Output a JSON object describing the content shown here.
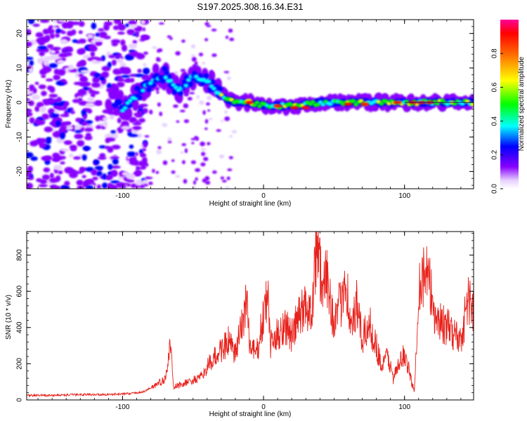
{
  "title": "S197.2025.308.16.34.E31",
  "chart_data": [
    {
      "type": "heatmap",
      "xlabel": "Height of straight line (km)",
      "ylabel": "Frequency (Hz)",
      "xlim": [
        -168,
        149
      ],
      "ylim": [
        -25,
        24
      ],
      "xticks": [
        -100,
        0,
        100
      ],
      "yticks": [
        -20,
        -10,
        0,
        10,
        20
      ],
      "colorbar": {
        "label": "Normalized spectral amplitude",
        "ticks": [
          0.0,
          0.2,
          0.4,
          0.6,
          0.8
        ],
        "range": [
          0,
          1
        ]
      },
      "ridge": {
        "description": "main frequency ridge",
        "points": [
          {
            "x": -100,
            "y": -2
          },
          {
            "x": -90,
            "y": 2
          },
          {
            "x": -80,
            "y": 6
          },
          {
            "x": -70,
            "y": 8
          },
          {
            "x": -60,
            "y": 3
          },
          {
            "x": -50,
            "y": 8
          },
          {
            "x": -40,
            "y": 6
          },
          {
            "x": -30,
            "y": 2
          },
          {
            "x": -20,
            "y": 0
          },
          {
            "x": -10,
            "y": 0
          },
          {
            "x": 0,
            "y": -1
          },
          {
            "x": 20,
            "y": -1
          },
          {
            "x": 40,
            "y": 0
          },
          {
            "x": 60,
            "y": 0
          },
          {
            "x": 80,
            "y": 0
          },
          {
            "x": 100,
            "y": 0
          },
          {
            "x": 120,
            "y": 0
          },
          {
            "x": 149,
            "y": 0
          }
        ]
      }
    },
    {
      "type": "line",
      "xlabel": "Height of straight line (km)",
      "ylabel": "SNR (10 * v/v)",
      "xlim": [
        -168,
        149
      ],
      "ylim": [
        0,
        930
      ],
      "xticks": [
        -100,
        0,
        100
      ],
      "yticks": [
        0,
        200,
        400,
        600,
        800
      ],
      "series": [
        {
          "name": "SNR",
          "color": "#e8211b",
          "points": [
            [
              -168,
              25
            ],
            [
              -150,
              25
            ],
            [
              -130,
              30
            ],
            [
              -110,
              30
            ],
            [
              -95,
              35
            ],
            [
              -85,
              45
            ],
            [
              -75,
              90
            ],
            [
              -70,
              110
            ],
            [
              -66,
              310
            ],
            [
              -64,
              70
            ],
            [
              -55,
              95
            ],
            [
              -45,
              120
            ],
            [
              -38,
              200
            ],
            [
              -30,
              280
            ],
            [
              -25,
              320
            ],
            [
              -20,
              250
            ],
            [
              -14,
              460
            ],
            [
              -12,
              600
            ],
            [
              -10,
              300
            ],
            [
              -5,
              250
            ],
            [
              3,
              580
            ],
            [
              5,
              300
            ],
            [
              15,
              420
            ],
            [
              20,
              350
            ],
            [
              25,
              460
            ],
            [
              30,
              520
            ],
            [
              34,
              480
            ],
            [
              38,
              935
            ],
            [
              42,
              560
            ],
            [
              45,
              700
            ],
            [
              50,
              420
            ],
            [
              55,
              540
            ],
            [
              58,
              720
            ],
            [
              62,
              380
            ],
            [
              66,
              520
            ],
            [
              70,
              330
            ],
            [
              75,
              420
            ],
            [
              80,
              300
            ],
            [
              84,
              180
            ],
            [
              88,
              250
            ],
            [
              92,
              120
            ],
            [
              100,
              260
            ],
            [
              107,
              40
            ],
            [
              110,
              640
            ],
            [
              115,
              700
            ],
            [
              118,
              620
            ],
            [
              122,
              460
            ],
            [
              130,
              400
            ],
            [
              135,
              370
            ],
            [
              140,
              330
            ],
            [
              145,
              560
            ],
            [
              149,
              500
            ]
          ]
        }
      ]
    }
  ]
}
